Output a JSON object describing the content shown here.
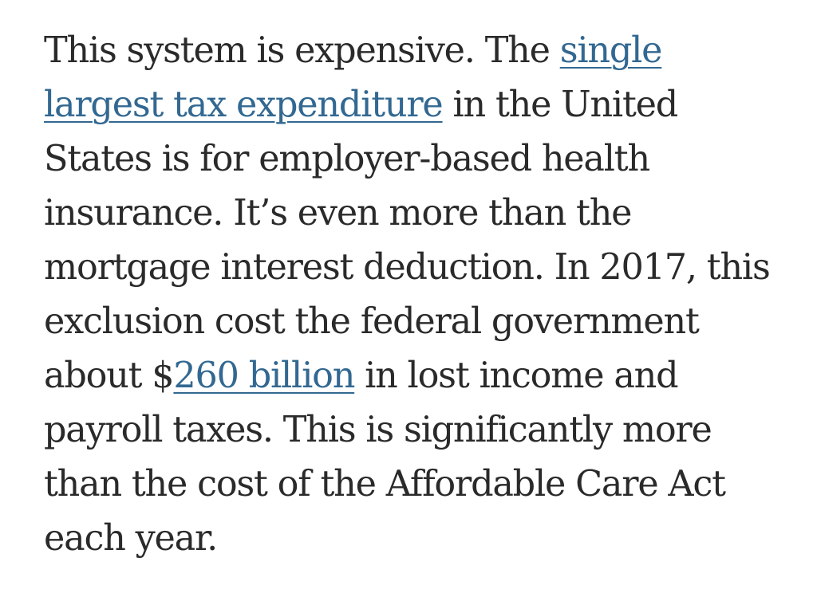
{
  "article": {
    "lines": [
      {
        "before": "This system is expensive. The ",
        "link": "single",
        "after": ""
      },
      {
        "before": "",
        "link": "largest tax expenditure",
        "after": " in the United"
      },
      {
        "before": "States is for employer-based health",
        "link": "",
        "after": ""
      },
      {
        "before": "insurance. It’s even more than the",
        "link": "",
        "after": ""
      },
      {
        "before": "mortgage interest deduction. In 2017, this",
        "link": "",
        "after": ""
      },
      {
        "before": "exclusion cost the federal government",
        "link": "",
        "after": ""
      },
      {
        "before": "about $",
        "link": "260 billion",
        "after": " in lost income and"
      },
      {
        "before": "payroll taxes. This is significantly more",
        "link": "",
        "after": ""
      },
      {
        "before": "than the cost of the Affordable Care Act",
        "link": "",
        "after": ""
      },
      {
        "before": "each year.",
        "link": "",
        "after": ""
      }
    ]
  },
  "colors": {
    "text": "#2a2a2a",
    "link": "#326891",
    "background": "#ffffff"
  }
}
